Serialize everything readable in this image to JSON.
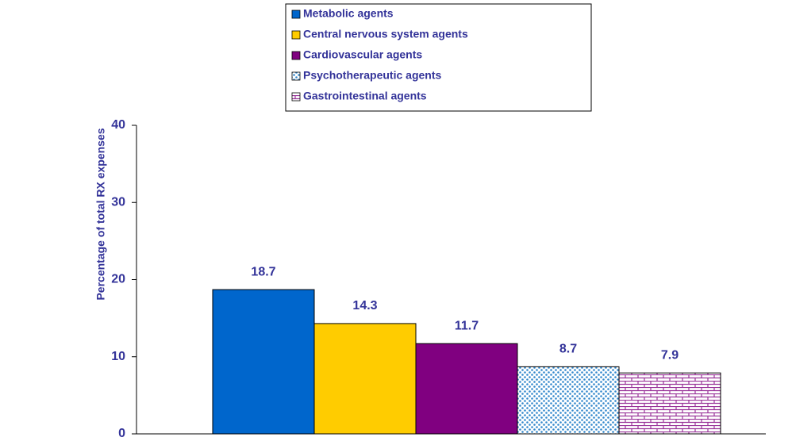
{
  "chart_data": {
    "type": "bar",
    "y_label": "Percentage of total RX expenses",
    "categories": [
      null
    ],
    "series": [
      {
        "name": "Metabolic agents",
        "color": "#0066cc",
        "values": [
          18.7
        ]
      },
      {
        "name": "Central nervous system agents",
        "color": "#ffcc00",
        "values": [
          14.3
        ]
      },
      {
        "name": "Cardiovascular agents",
        "color": "#800080",
        "values": [
          11.7
        ]
      },
      {
        "name": "Psychotherapeutic agents",
        "color": "#3388cc",
        "pattern": "dots",
        "values": [
          8.7
        ]
      },
      {
        "name": "Gastrointestinal agents",
        "color": "#993399",
        "pattern": "bricks",
        "values": [
          7.9
        ]
      }
    ],
    "ylim": [
      0,
      40
    ],
    "yticks": [
      0,
      10,
      20,
      30,
      40
    ],
    "grid": false,
    "legend": "top"
  }
}
